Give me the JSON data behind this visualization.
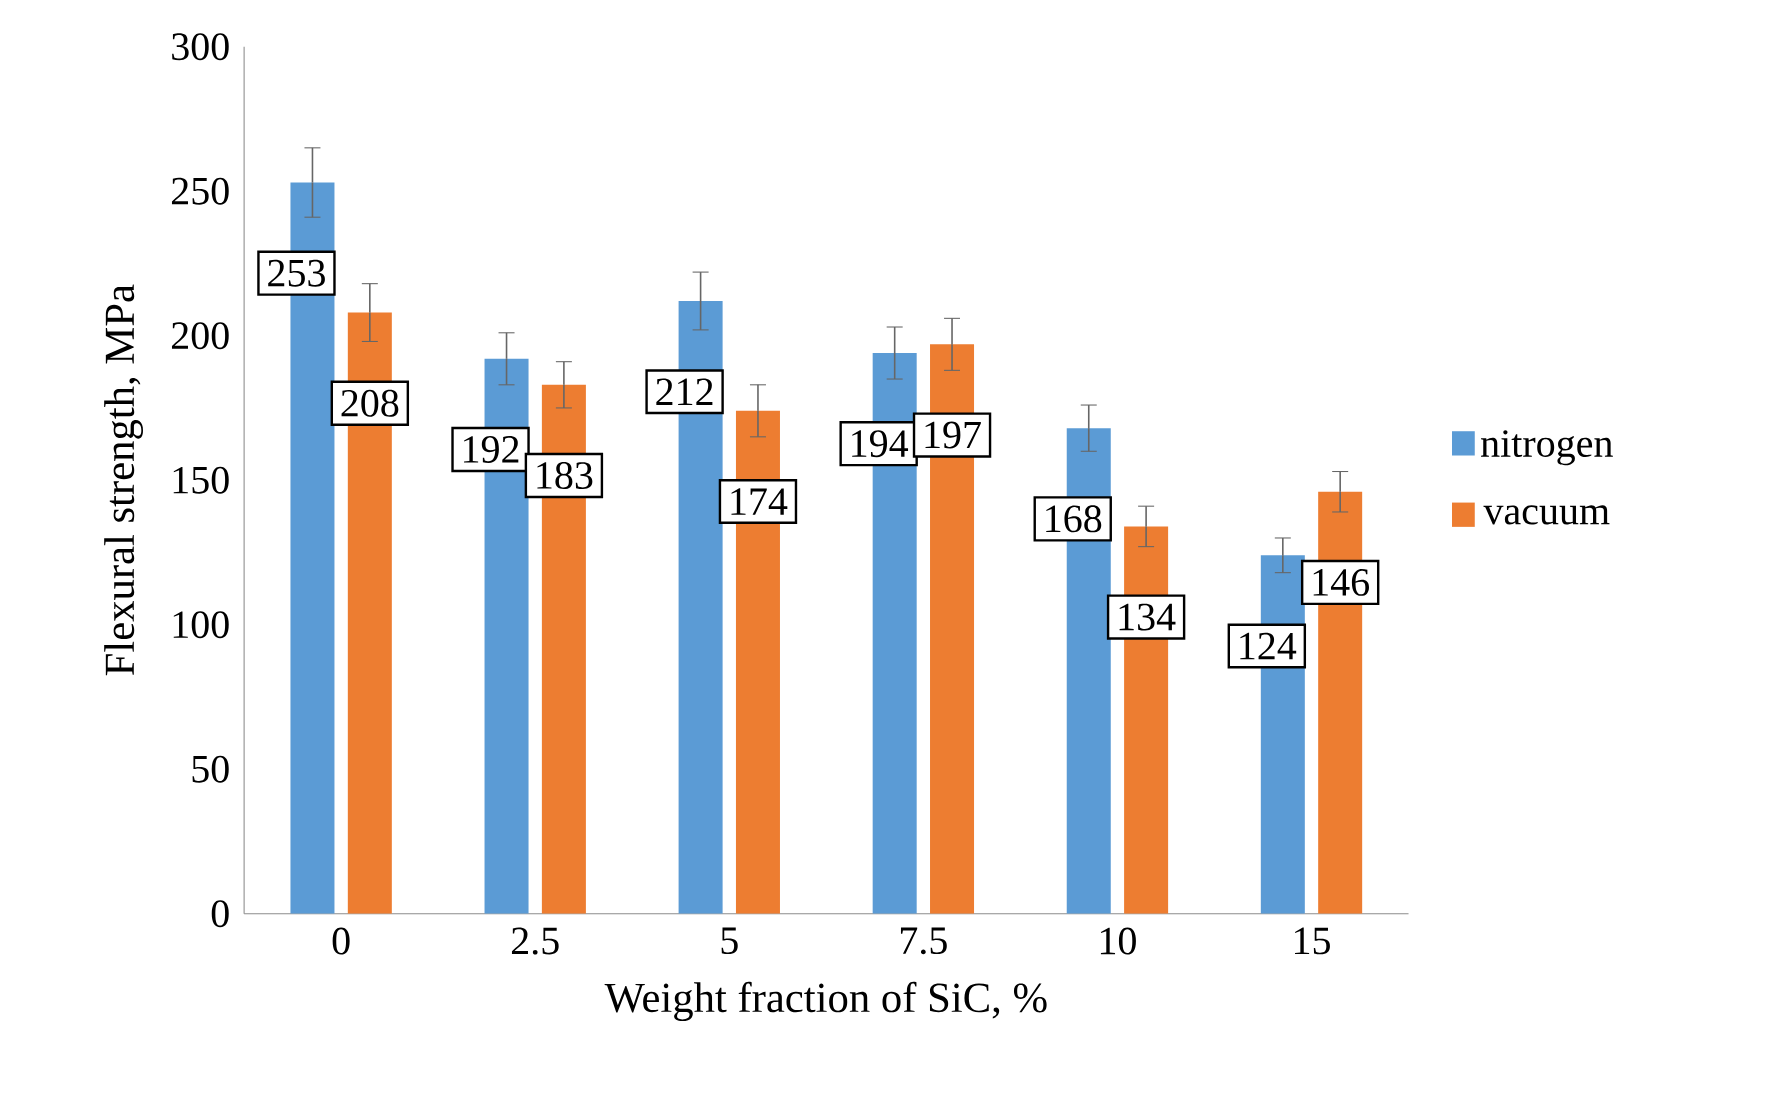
{
  "chart_data": {
    "type": "bar",
    "xlabel": "Weight fraction of SiC, %",
    "ylabel": "Flexural strength, MPa",
    "categories": [
      "0",
      "2.5",
      "5",
      "7.5",
      "10",
      "15"
    ],
    "series": [
      {
        "name": "nitrogen",
        "color": "#5b9bd5",
        "values": [
          253,
          192,
          212,
          194,
          168,
          124
        ],
        "errors": [
          12,
          9,
          10,
          9,
          8,
          6
        ]
      },
      {
        "name": "vacuum",
        "color": "#ed7d31",
        "values": [
          208,
          183,
          174,
          197,
          134,
          146
        ],
        "errors": [
          10,
          8,
          9,
          9,
          7,
          7
        ]
      }
    ],
    "ylim": [
      0,
      300
    ],
    "yticks": [
      0,
      50,
      100,
      150,
      200,
      250,
      300
    ],
    "data_labels": true,
    "legend": "right",
    "grid": false
  }
}
